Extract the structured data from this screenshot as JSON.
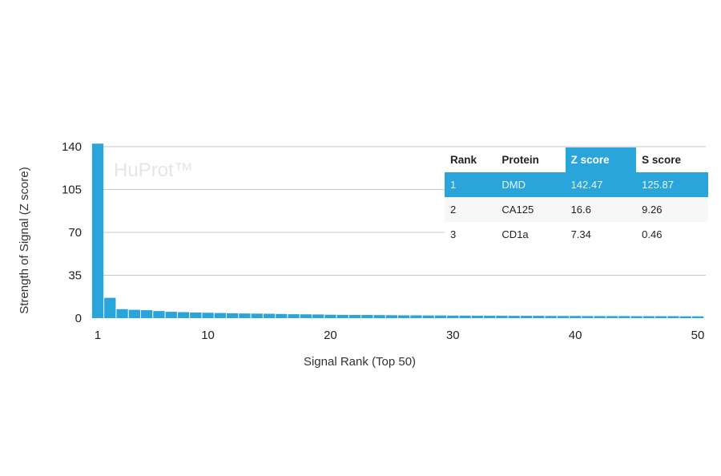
{
  "chart_data": {
    "type": "bar",
    "xlabel": "Signal Rank (Top 50)",
    "ylabel": "Strength of Signal (Z score)",
    "watermark": "HuProt™",
    "ylim": [
      0,
      140
    ],
    "yticks": [
      0,
      35,
      70,
      105,
      140
    ],
    "xticks": [
      1,
      10,
      20,
      30,
      40,
      50
    ],
    "grid": true,
    "bar_color": "#29a5dc",
    "x": [
      1,
      2,
      3,
      4,
      5,
      6,
      7,
      8,
      9,
      10,
      11,
      12,
      13,
      14,
      15,
      16,
      17,
      18,
      19,
      20,
      21,
      22,
      23,
      24,
      25,
      26,
      27,
      28,
      29,
      30,
      31,
      32,
      33,
      34,
      35,
      36,
      37,
      38,
      39,
      40,
      41,
      42,
      43,
      44,
      45,
      46,
      47,
      48,
      49,
      50
    ],
    "values": [
      142.47,
      16.6,
      7.34,
      6.8,
      6.5,
      5.8,
      5.2,
      4.9,
      4.6,
      4.4,
      4.2,
      4.0,
      3.8,
      3.7,
      3.6,
      3.4,
      3.2,
      3.1,
      3.0,
      2.8,
      2.7,
      2.6,
      2.6,
      2.5,
      2.4,
      2.3,
      2.3,
      2.2,
      2.2,
      2.1,
      2.1,
      2.0,
      2.0,
      2.0,
      1.9,
      1.9,
      1.9,
      1.8,
      1.8,
      1.8,
      1.7,
      1.7,
      1.7,
      1.7,
      1.6,
      1.6,
      1.6,
      1.6,
      1.5,
      1.5
    ],
    "table": {
      "headers": [
        "Rank",
        "Protein",
        "Z score",
        "S score"
      ],
      "highlight_header": "Z score",
      "rows": [
        [
          "1",
          "DMD",
          "142.47",
          "125.87"
        ],
        [
          "2",
          "CA125",
          "16.6",
          "9.26"
        ],
        [
          "3",
          "CD1a",
          "7.34",
          "0.46"
        ]
      ],
      "highlight_row": 1
    }
  }
}
